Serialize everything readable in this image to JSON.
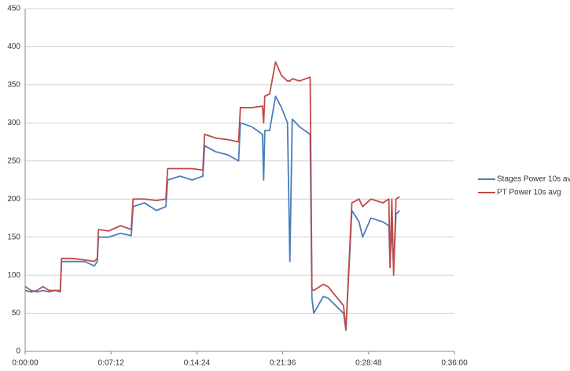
{
  "chart_data": {
    "type": "line",
    "x": [
      0,
      0.5,
      1,
      1.5,
      2,
      2.5,
      2.95,
      3.05,
      4,
      5,
      5.8,
      6.05,
      6.15,
      7,
      8,
      8.9,
      9.05,
      10,
      11,
      11.8,
      11.95,
      13,
      14,
      14.9,
      15.05,
      16,
      17,
      17.9,
      18.05,
      19,
      19.9,
      20.0,
      20.1,
      20.5,
      21.0,
      21.5,
      22.0,
      22.2,
      22.4,
      23,
      23.9,
      24.05,
      24.2,
      25,
      25.4,
      26.7,
      26.9,
      27.4,
      28,
      28.3,
      29,
      30,
      30.5,
      30.6,
      30.75,
      30.9,
      31.1,
      31.4
    ],
    "series": [
      {
        "name": "Stages Power 10s avg",
        "color": "#4a7ebb",
        "values": [
          85,
          80,
          78,
          80,
          78,
          80,
          78,
          118,
          118,
          118,
          112,
          118,
          150,
          150,
          155,
          152,
          190,
          195,
          185,
          190,
          225,
          230,
          225,
          230,
          270,
          262,
          258,
          250,
          300,
          295,
          285,
          225,
          290,
          290,
          335,
          320,
          300,
          118,
          305,
          295,
          285,
          70,
          50,
          72,
          70,
          50,
          28,
          185,
          170,
          150,
          175,
          170,
          165,
          115,
          165,
          110,
          180,
          185
        ]
      },
      {
        "name": "PT Power 10s avg",
        "color": "#be4b48",
        "values": [
          80,
          78,
          80,
          85,
          80,
          80,
          80,
          122,
          122,
          120,
          118,
          122,
          160,
          158,
          165,
          160,
          200,
          200,
          198,
          200,
          240,
          240,
          240,
          238,
          285,
          280,
          278,
          275,
          320,
          320,
          322,
          300,
          335,
          338,
          380,
          362,
          355,
          355,
          358,
          355,
          360,
          82,
          80,
          88,
          85,
          60,
          28,
          195,
          200,
          190,
          200,
          195,
          200,
          110,
          200,
          100,
          200,
          203
        ]
      }
    ],
    "xlim": [
      0,
      36
    ],
    "xticks": [
      {
        "value": 0,
        "label": "0:00:00"
      },
      {
        "value": 7.2,
        "label": "0:07:12"
      },
      {
        "value": 14.4,
        "label": "0:14:24"
      },
      {
        "value": 21.6,
        "label": "0:21:36"
      },
      {
        "value": 28.8,
        "label": "0:28:48"
      },
      {
        "value": 36,
        "label": "0:36:00"
      }
    ],
    "ylim": [
      0,
      450
    ],
    "yticks": [
      0,
      50,
      100,
      150,
      200,
      250,
      300,
      350,
      400,
      450
    ],
    "grid": true,
    "legend": "right"
  }
}
